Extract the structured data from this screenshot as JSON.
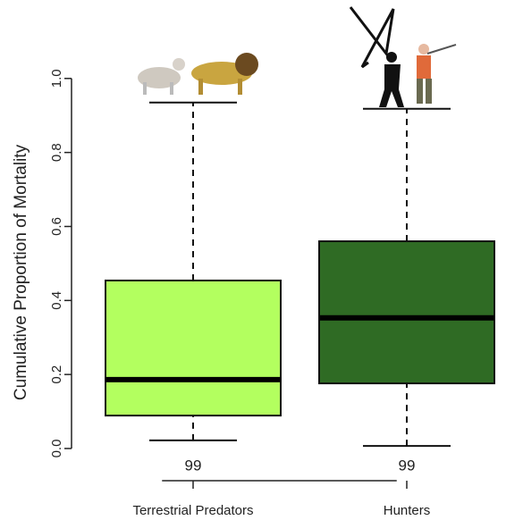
{
  "chart_data": {
    "type": "box",
    "y_label": "Cumulative Proportion of Mortality",
    "categories": [
      "Terrestrial Predators",
      "Hunters"
    ],
    "colors": [
      "#b3ff5f",
      "#2f6b24"
    ],
    "boxes": [
      {
        "min": 0.022,
        "q1": 0.089,
        "median": 0.186,
        "q3": 0.454,
        "max": 0.935
      },
      {
        "min": 0.007,
        "q1": 0.176,
        "median": 0.353,
        "q3": 0.56,
        "max": 0.918
      }
    ],
    "counts": [
      99,
      99
    ],
    "ylim": [
      -0.087,
      1.043
    ],
    "yticks": [
      {
        "value": 0,
        "label": "0.0"
      },
      0.2,
      0.4,
      0.6,
      0.8,
      {
        "value": 1,
        "label": "1.0"
      }
    ]
  }
}
